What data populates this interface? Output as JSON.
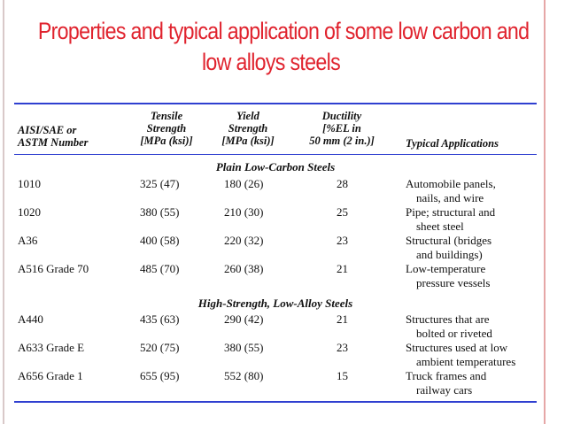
{
  "title": {
    "line1": "Properties and typical application of some low carbon and",
    "line2": "low alloys steels"
  },
  "header": {
    "designation": [
      "AISI/SAE or",
      "ASTM Number"
    ],
    "tensile": [
      "Tensile",
      "Strength",
      "[MPa (ksi)]"
    ],
    "yield": [
      "Yield",
      "Strength",
      "[MPa (ksi)]"
    ],
    "ductility": [
      "Ductility",
      "[%EL in",
      "50 mm (2 in.)]"
    ],
    "applications": "Typical Applications"
  },
  "sections": [
    {
      "title": "Plain Low-Carbon Steels",
      "rows": [
        {
          "designation": "1010",
          "tensile": "325 (47)",
          "yield": "180 (26)",
          "ductility": "28",
          "app": [
            "Automobile panels,",
            "nails, and wire"
          ]
        },
        {
          "designation": "1020",
          "tensile": "380 (55)",
          "yield": "210 (30)",
          "ductility": "25",
          "app": [
            "Pipe; structural and",
            "sheet steel"
          ]
        },
        {
          "designation": "A36",
          "tensile": "400 (58)",
          "yield": "220 (32)",
          "ductility": "23",
          "app": [
            "Structural (bridges",
            "and buildings)"
          ]
        },
        {
          "designation": "A516 Grade 70",
          "tensile": "485 (70)",
          "yield": "260 (38)",
          "ductility": "21",
          "app": [
            "Low-temperature",
            "pressure vessels"
          ]
        }
      ]
    },
    {
      "title": "High-Strength, Low-Alloy Steels",
      "rows": [
        {
          "designation": "A440",
          "tensile": "435 (63)",
          "yield": "290 (42)",
          "ductility": "21",
          "app": [
            "Structures that are",
            "bolted or riveted"
          ]
        },
        {
          "designation": "A633 Grade E",
          "tensile": "520 (75)",
          "yield": "380 (55)",
          "ductility": "23",
          "app": [
            "Structures used at low",
            "ambient temperatures"
          ]
        },
        {
          "designation": "A656 Grade 1",
          "tensile": "655 (95)",
          "yield": "552 (80)",
          "ductility": "15",
          "app": [
            "Truck frames and",
            "railway cars"
          ]
        }
      ]
    }
  ]
}
